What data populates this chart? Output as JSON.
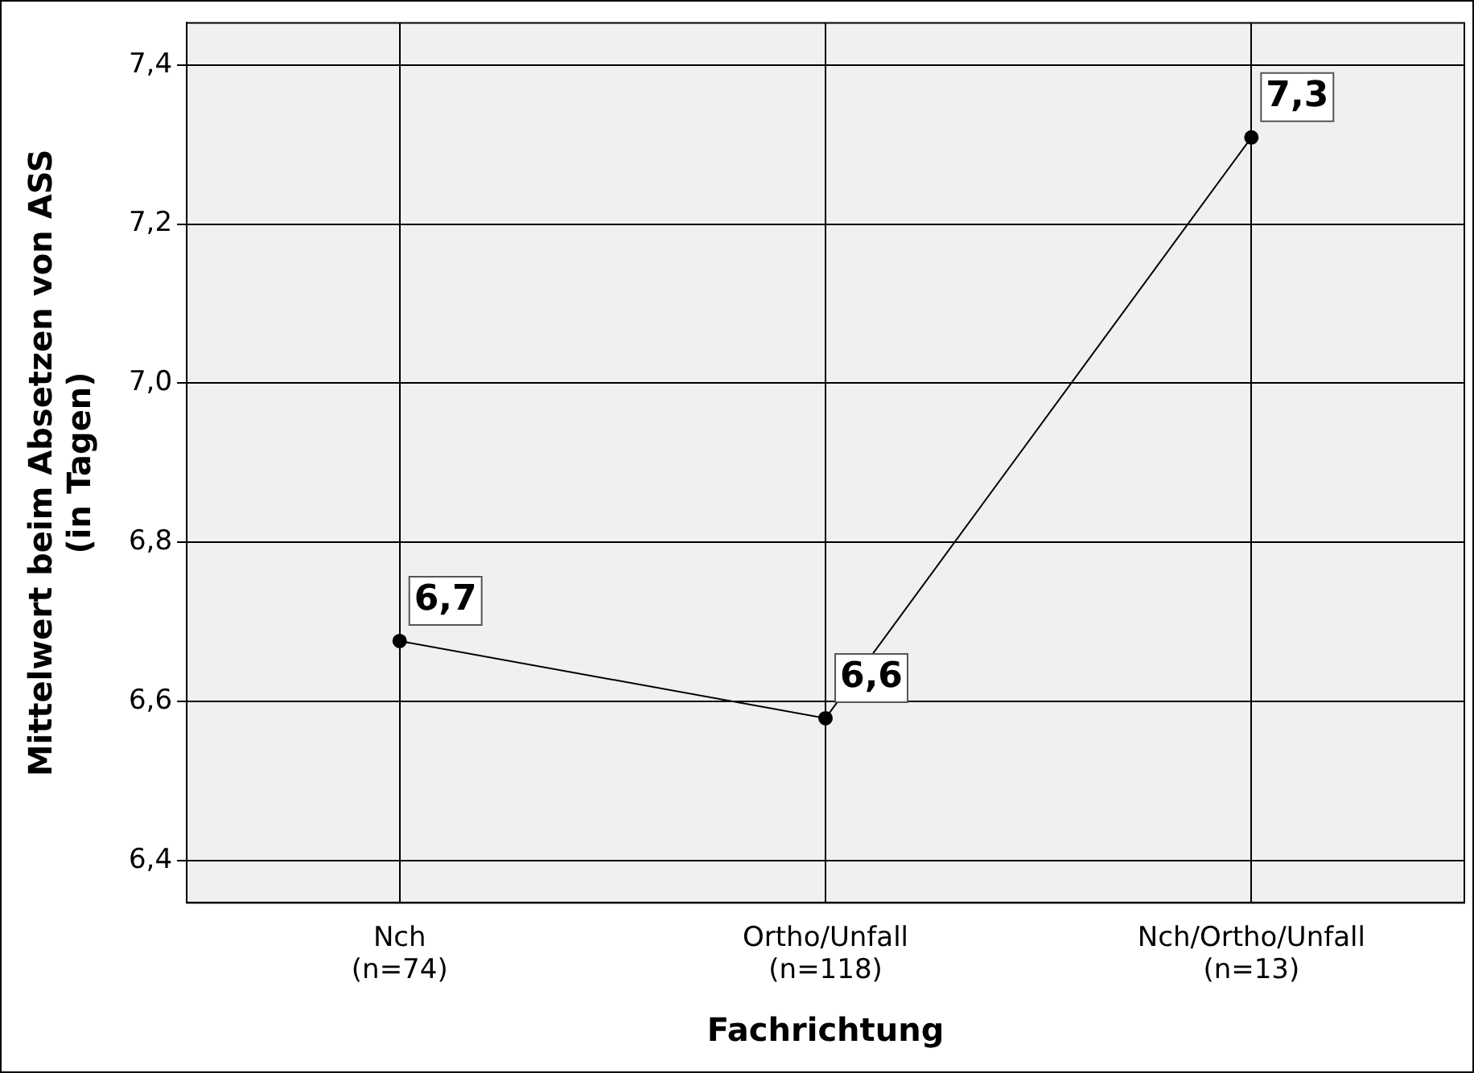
{
  "chart_data": {
    "type": "line",
    "xlabel": "Fachrichtung",
    "ylabel": "Mittelwert beim Absetzen von ASS\n(in Tagen)",
    "categories": [
      "Nch\n(n=74)",
      "Ortho/Unfall\n(n=118)",
      "Nch/Ortho/Unfall\n(n=13)"
    ],
    "series": [
      {
        "color": "#000000",
        "values": [
          6.676,
          6.579,
          7.309
        ],
        "value_labels": [
          "6,7",
          "6,6",
          "7,3"
        ]
      }
    ],
    "ylim": [
      6.347,
      7.453
    ],
    "yticks": [
      {
        "value": 6.4,
        "label": "6,4"
      },
      {
        "value": 6.6,
        "label": "6,6"
      },
      {
        "value": 6.8,
        "label": "6,8"
      },
      {
        "value": 7.0,
        "label": "7,0"
      },
      {
        "value": 7.2,
        "label": "7,2"
      },
      {
        "value": 7.4,
        "label": "7,4"
      }
    ],
    "grid": true,
    "legend": false,
    "marker": "circle",
    "line_style": "solid"
  }
}
